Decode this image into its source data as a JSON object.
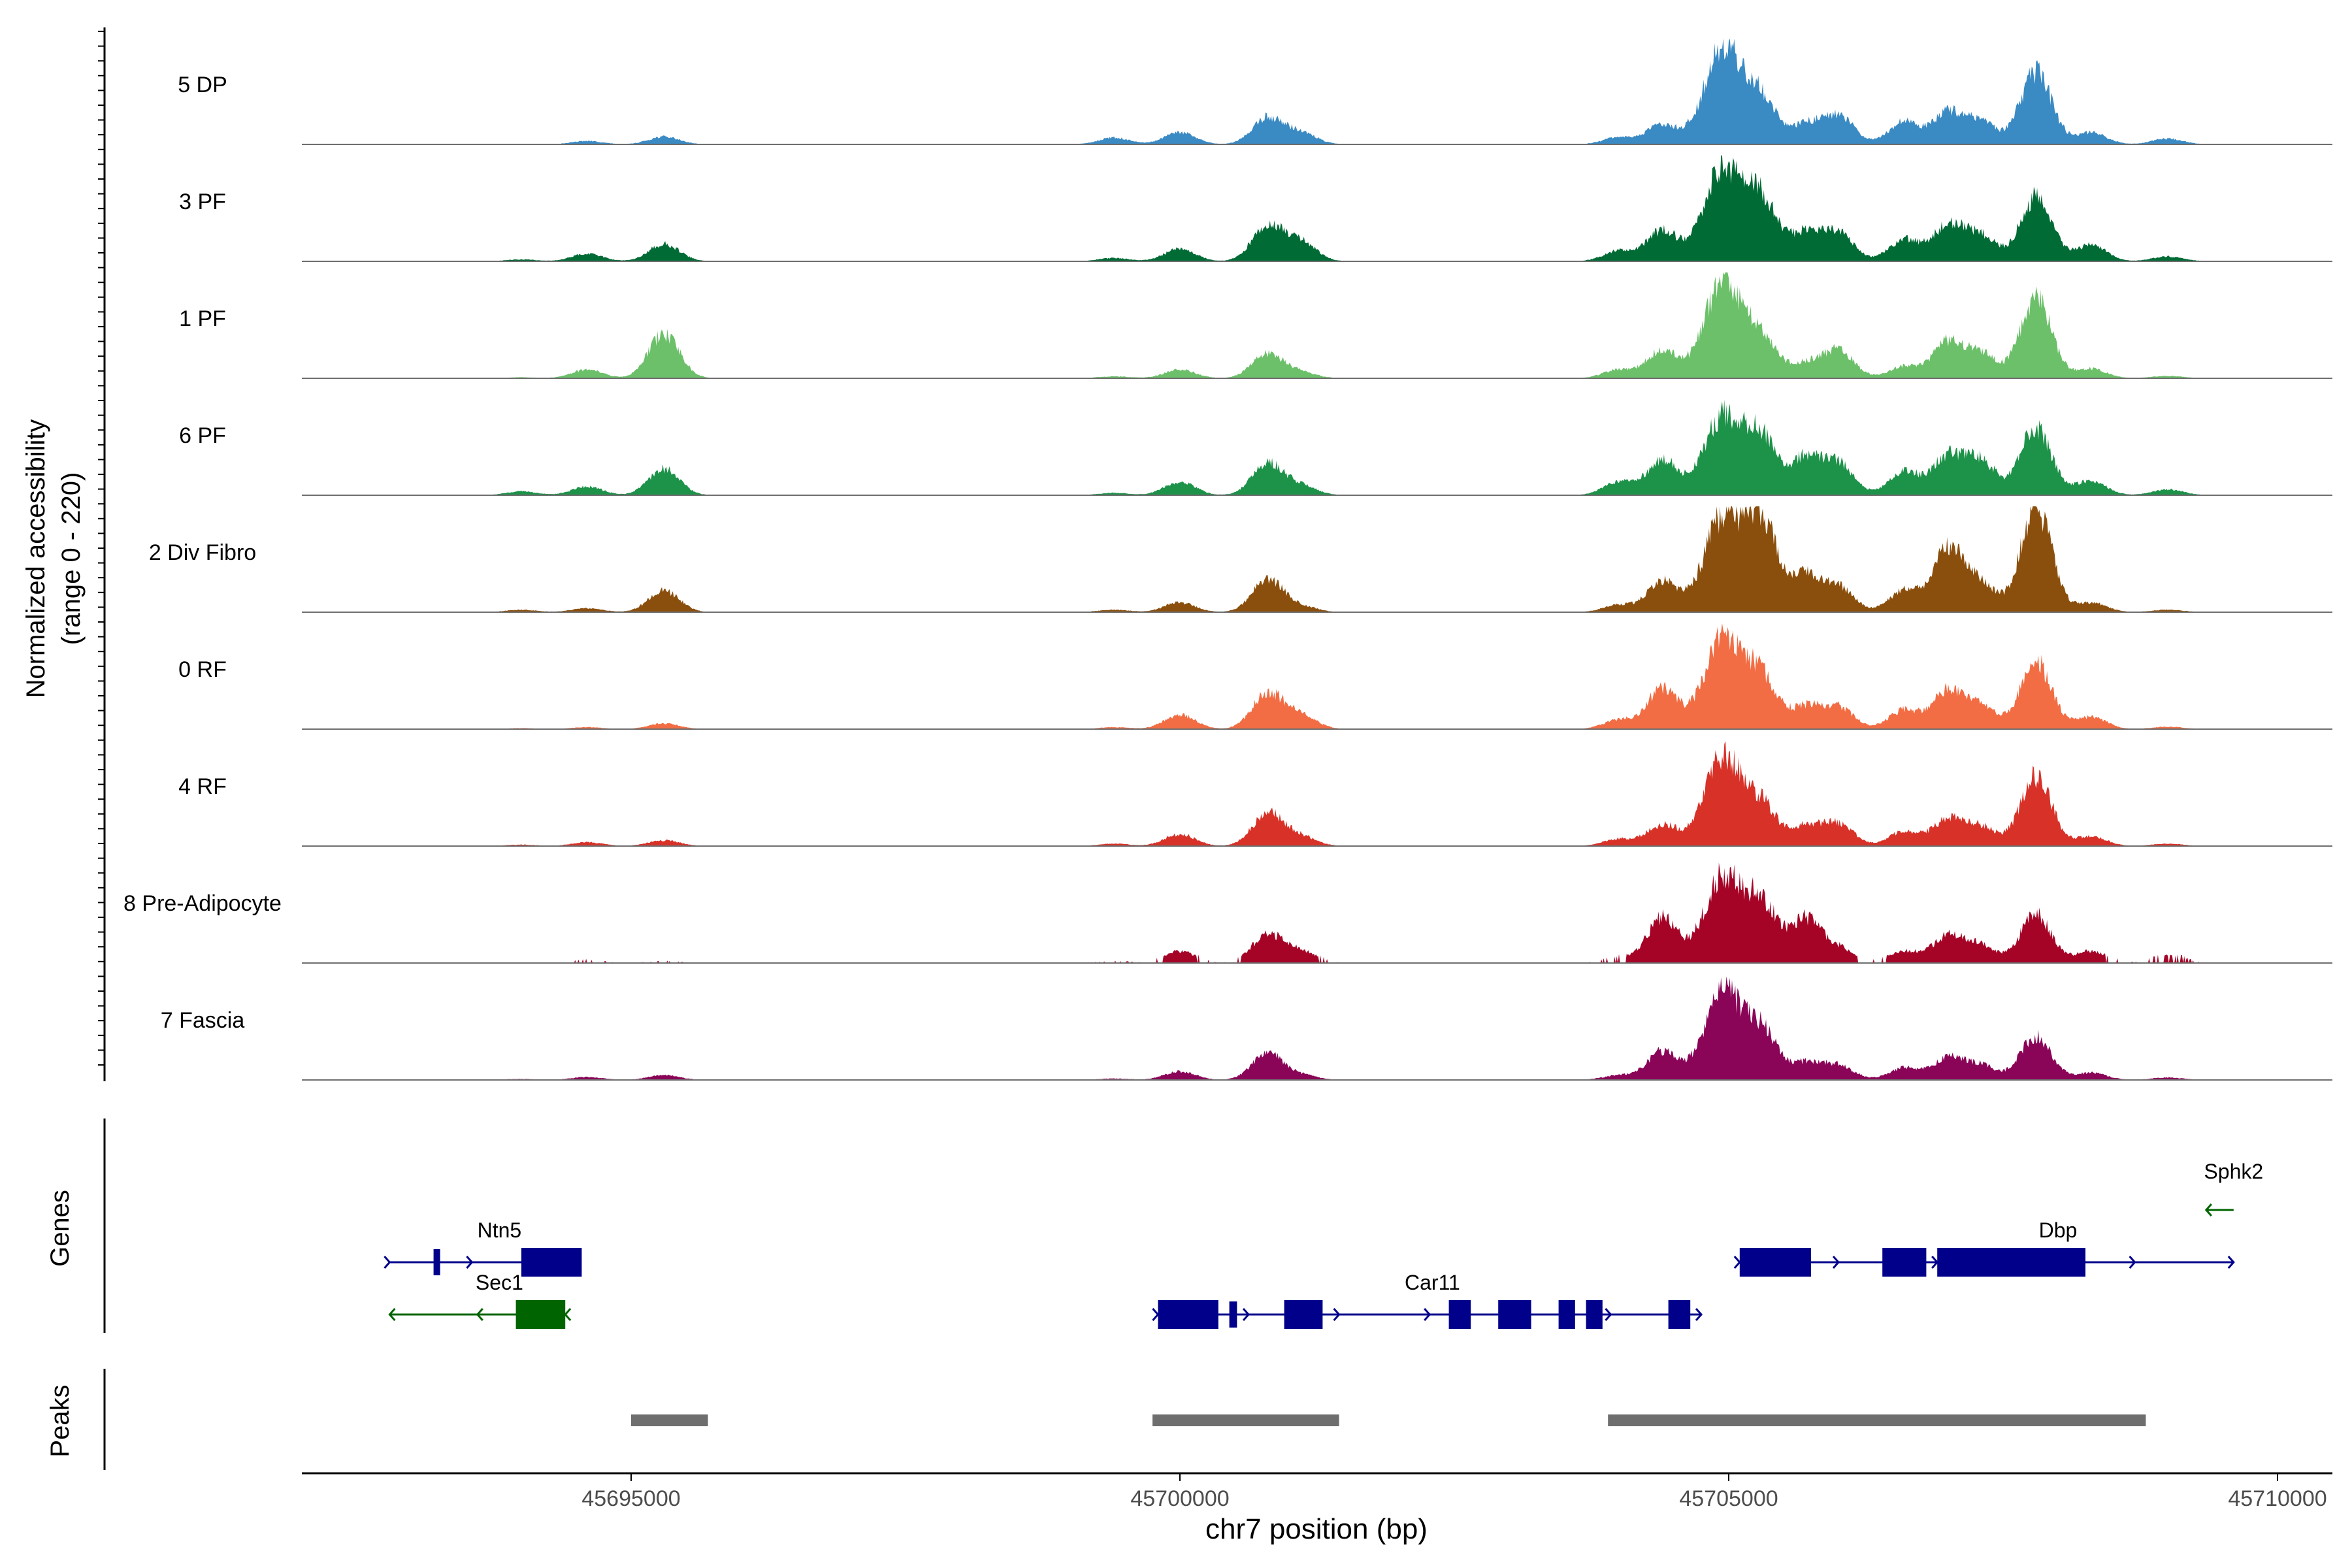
{
  "chart_data": {
    "type": "area",
    "title": "",
    "xlabel": "chr7 position (bp)",
    "ylabel_line1": "Normalized accessibility",
    "ylabel_line2": "(range 0 - 220)",
    "ylim": [
      0,
      220
    ],
    "xlim": [
      45692000,
      45710500
    ],
    "x_ticks": [
      45695000,
      45700000,
      45705000,
      45710000
    ],
    "x_tick_labels": [
      "45695000",
      "45700000",
      "45705000",
      "45710000"
    ],
    "peak_x": [
      45694000,
      45694600,
      45695300,
      45699400,
      45700000,
      45700800,
      45701100,
      45704000,
      45704400,
      45704950,
      45705300,
      45705700,
      45706000,
      45706600,
      45707000,
      45707300,
      45707800,
      45708300,
      45709000
    ],
    "tracks": [
      {
        "name": "5 DP",
        "color": "#3A8AC4",
        "values": [
          1,
          7,
          16,
          14,
          25,
          55,
          24,
          15,
          42,
          205,
          90,
          40,
          60,
          48,
          65,
          45,
          150,
          25,
          12
        ]
      },
      {
        "name": "3 PF",
        "color": "#006B35",
        "values": [
          4,
          16,
          36,
          7,
          26,
          75,
          40,
          22,
          65,
          195,
          125,
          60,
          58,
          45,
          75,
          52,
          135,
          35,
          10
        ]
      },
      {
        "name": "1 PF",
        "color": "#6CC06A",
        "values": [
          2,
          18,
          92,
          4,
          18,
          52,
          12,
          18,
          60,
          200,
          80,
          30,
          58,
          25,
          75,
          50,
          165,
          20,
          5
        ]
      },
      {
        "name": "6 PF",
        "color": "#1D9249",
        "values": [
          8,
          18,
          55,
          5,
          28,
          65,
          20,
          28,
          75,
          165,
          115,
          78,
          65,
          50,
          80,
          70,
          140,
          30,
          12
        ]
      },
      {
        "name": "2 Div Fibro",
        "color": "#8B4F0D",
        "values": [
          5,
          8,
          45,
          5,
          20,
          68,
          12,
          15,
          65,
          200,
          185,
          75,
          50,
          45,
          130,
          55,
          215,
          20,
          5
        ]
      },
      {
        "name": "0 RF",
        "color": "#F26D44",
        "values": [
          2,
          4,
          12,
          4,
          30,
          75,
          30,
          20,
          85,
          190,
          105,
          45,
          45,
          40,
          80,
          45,
          140,
          25,
          5
        ]
      },
      {
        "name": "4 RF",
        "color": "#D83128",
        "values": [
          3,
          8,
          12,
          5,
          25,
          68,
          20,
          15,
          45,
          185,
          80,
          40,
          45,
          30,
          55,
          40,
          145,
          20,
          5
        ]
      },
      {
        "name": "8 Pre-Adipocyte",
        "color": "#A50427",
        "values": [
          0,
          5,
          3,
          3,
          25,
          60,
          25,
          10,
          95,
          180,
          120,
          90,
          30,
          25,
          55,
          35,
          100,
          25,
          15
        ]
      },
      {
        "name": "7 Fascia",
        "color": "#8A0458",
        "values": [
          2,
          6,
          10,
          3,
          18,
          55,
          10,
          10,
          60,
          180,
          100,
          35,
          30,
          25,
          45,
          30,
          90,
          15,
          5
        ]
      }
    ],
    "genes": [
      {
        "name": "Ntn5",
        "strand": "+",
        "color": "#00008B",
        "start": 45692800,
        "end": 45694300,
        "exons": [
          [
            45693200,
            45693260
          ],
          [
            45694000,
            45694550
          ]
        ],
        "label_x": 45693800,
        "row": 1
      },
      {
        "name": "Sec1",
        "strand": "-",
        "color": "#006400",
        "start": 45692800,
        "end": 45694400,
        "exons": [
          [
            45693950,
            45694400
          ]
        ],
        "label_x": 45693800,
        "row": 2
      },
      {
        "name": "Car11",
        "strand": "+",
        "color": "#00008B",
        "start": 45699800,
        "end": 45704750,
        "exons": [
          [
            45699800,
            45700350
          ],
          [
            45700450,
            45700520
          ],
          [
            45700950,
            45701300
          ],
          [
            45702450,
            45702650
          ],
          [
            45702900,
            45703200
          ],
          [
            45703450,
            45703600
          ],
          [
            45703700,
            45703850
          ],
          [
            45704450,
            45704650
          ]
        ],
        "label_x": 45702300,
        "row": 2
      },
      {
        "name": "Dbp",
        "strand": "+",
        "color": "#00008B",
        "start": 45705100,
        "end": 45709600,
        "exons": [
          [
            45705100,
            45705750
          ],
          [
            45706400,
            45706800
          ],
          [
            45706900,
            45708250
          ]
        ],
        "label_x": 45708000,
        "row": 1
      },
      {
        "name": "Sphk2",
        "strand": "-",
        "color": "#006400",
        "start": 45709350,
        "end": 45709600,
        "exons": [],
        "label_x": 45709600,
        "row": 0
      }
    ],
    "gene_panel_label": "Genes",
    "peaks_panel_label": "Peaks",
    "peaks": [
      [
        45695000,
        45695700
      ],
      [
        45699750,
        45701450
      ],
      [
        45703900,
        45708800
      ]
    ]
  }
}
